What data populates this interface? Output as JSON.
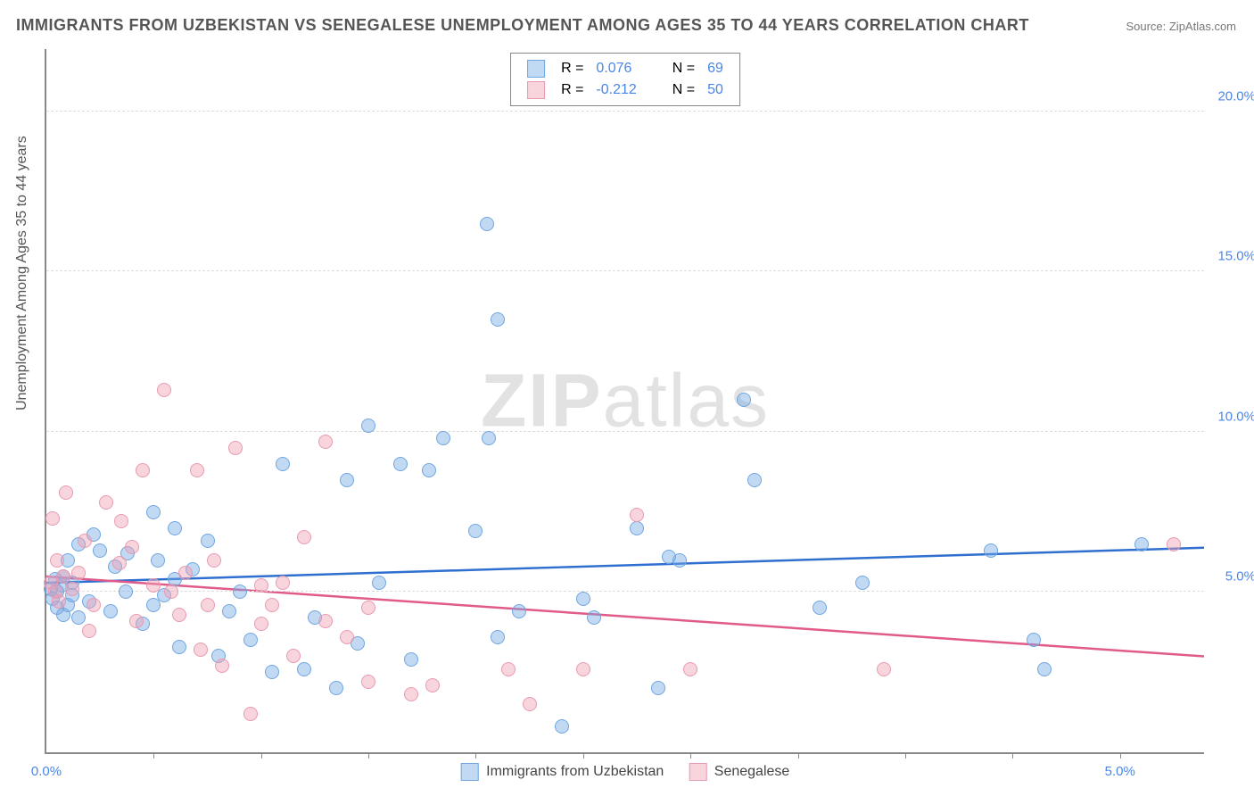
{
  "title": "IMMIGRANTS FROM UZBEKISTAN VS SENEGALESE UNEMPLOYMENT AMONG AGES 35 TO 44 YEARS CORRELATION CHART",
  "source": "Source: ZipAtlas.com",
  "ylabel": "Unemployment Among Ages 35 to 44 years",
  "watermark_a": "ZIP",
  "watermark_b": "atlas",
  "chart": {
    "type": "scatter",
    "x_min": 0.0,
    "x_max": 5.4,
    "y_min": 0.0,
    "y_max": 22.0,
    "grid_color": "#dddddd",
    "background": "#ffffff",
    "axis_color": "#888888",
    "ytick_color": "#4a86e8",
    "yticks": [
      5.0,
      10.0,
      15.0,
      20.0
    ],
    "ytick_labels": [
      "5.0%",
      "10.0%",
      "15.0%",
      "20.0%"
    ],
    "xtick_marks": [
      0.5,
      1.0,
      1.5,
      2.0,
      2.5,
      3.0,
      3.5,
      4.0,
      4.5,
      5.0
    ],
    "xtick_labels": [
      {
        "x": 0.0,
        "text": "0.0%",
        "color": "#4a86e8"
      },
      {
        "x": 5.0,
        "text": "5.0%",
        "color": "#4a86e8"
      }
    ],
    "series": [
      {
        "name": "Immigrants from Uzbekistan",
        "fill": "rgba(120,170,230,0.45)",
        "stroke": "#6fa6e0",
        "trend_color": "#2f6fd0",
        "R": "0.076",
        "N": "69",
        "trend": {
          "y_at_xmin": 5.3,
          "y_at_xmax": 6.4
        },
        "points": [
          [
            0.02,
            5.1
          ],
          [
            0.03,
            4.8
          ],
          [
            0.04,
            5.4
          ],
          [
            0.05,
            4.5
          ],
          [
            0.05,
            5.0
          ],
          [
            0.07,
            5.2
          ],
          [
            0.08,
            4.3
          ],
          [
            0.08,
            5.5
          ],
          [
            0.1,
            4.6
          ],
          [
            0.1,
            6.0
          ],
          [
            0.12,
            4.9
          ],
          [
            0.12,
            5.3
          ],
          [
            0.15,
            4.2
          ],
          [
            0.15,
            6.5
          ],
          [
            0.2,
            4.7
          ],
          [
            0.25,
            6.3
          ],
          [
            0.3,
            4.4
          ],
          [
            0.32,
            5.8
          ],
          [
            0.37,
            5.0
          ],
          [
            0.45,
            4.0
          ],
          [
            0.5,
            7.5
          ],
          [
            0.5,
            4.6
          ],
          [
            0.52,
            6.0
          ],
          [
            0.55,
            4.9
          ],
          [
            0.6,
            5.4
          ],
          [
            0.6,
            7.0
          ],
          [
            0.62,
            3.3
          ],
          [
            0.68,
            5.7
          ],
          [
            0.75,
            6.6
          ],
          [
            0.8,
            3.0
          ],
          [
            0.85,
            4.4
          ],
          [
            0.9,
            5.0
          ],
          [
            0.95,
            3.5
          ],
          [
            1.05,
            2.5
          ],
          [
            1.1,
            9.0
          ],
          [
            1.2,
            2.6
          ],
          [
            1.25,
            4.2
          ],
          [
            1.35,
            2.0
          ],
          [
            1.4,
            8.5
          ],
          [
            1.45,
            3.4
          ],
          [
            1.5,
            10.2
          ],
          [
            1.55,
            5.3
          ],
          [
            1.65,
            9.0
          ],
          [
            1.7,
            2.9
          ],
          [
            1.78,
            8.8
          ],
          [
            1.85,
            9.8
          ],
          [
            2.0,
            6.9
          ],
          [
            2.05,
            16.5
          ],
          [
            2.06,
            9.8
          ],
          [
            2.1,
            3.6
          ],
          [
            2.1,
            13.5
          ],
          [
            2.2,
            4.4
          ],
          [
            2.4,
            0.8
          ],
          [
            2.5,
            4.8
          ],
          [
            2.55,
            4.2
          ],
          [
            2.75,
            7.0
          ],
          [
            2.85,
            2.0
          ],
          [
            2.9,
            6.1
          ],
          [
            2.95,
            6.0
          ],
          [
            3.25,
            11.0
          ],
          [
            3.3,
            8.5
          ],
          [
            3.6,
            4.5
          ],
          [
            3.8,
            5.3
          ],
          [
            4.4,
            6.3
          ],
          [
            4.6,
            3.5
          ],
          [
            4.65,
            2.6
          ],
          [
            5.1,
            6.5
          ],
          [
            0.22,
            6.8
          ],
          [
            0.38,
            6.2
          ]
        ]
      },
      {
        "name": "Senegalese",
        "fill": "rgba(240,160,180,0.45)",
        "stroke": "#e89ab0",
        "trend_color": "#e05a8a",
        "R": "-0.212",
        "N": "50",
        "trend": {
          "y_at_xmin": 5.5,
          "y_at_xmax": 3.0
        },
        "points": [
          [
            0.02,
            5.3
          ],
          [
            0.03,
            7.3
          ],
          [
            0.04,
            5.0
          ],
          [
            0.05,
            6.0
          ],
          [
            0.06,
            4.7
          ],
          [
            0.08,
            5.5
          ],
          [
            0.09,
            8.1
          ],
          [
            0.12,
            5.1
          ],
          [
            0.15,
            5.6
          ],
          [
            0.2,
            3.8
          ],
          [
            0.22,
            4.6
          ],
          [
            0.28,
            7.8
          ],
          [
            0.35,
            7.2
          ],
          [
            0.4,
            6.4
          ],
          [
            0.42,
            4.1
          ],
          [
            0.45,
            8.8
          ],
          [
            0.55,
            11.3
          ],
          [
            0.58,
            5.0
          ],
          [
            0.62,
            4.3
          ],
          [
            0.65,
            5.6
          ],
          [
            0.7,
            8.8
          ],
          [
            0.72,
            3.2
          ],
          [
            0.75,
            4.6
          ],
          [
            0.78,
            6.0
          ],
          [
            0.82,
            2.7
          ],
          [
            0.88,
            9.5
          ],
          [
            0.95,
            1.2
          ],
          [
            1.0,
            5.2
          ],
          [
            1.0,
            4.0
          ],
          [
            1.05,
            4.6
          ],
          [
            1.1,
            5.3
          ],
          [
            1.15,
            3.0
          ],
          [
            1.2,
            6.7
          ],
          [
            1.3,
            9.7
          ],
          [
            1.3,
            4.1
          ],
          [
            1.4,
            3.6
          ],
          [
            1.5,
            4.5
          ],
          [
            1.5,
            2.2
          ],
          [
            1.7,
            1.8
          ],
          [
            1.8,
            2.1
          ],
          [
            2.15,
            2.6
          ],
          [
            2.25,
            1.5
          ],
          [
            2.5,
            2.6
          ],
          [
            2.75,
            7.4
          ],
          [
            3.0,
            2.6
          ],
          [
            3.9,
            2.6
          ],
          [
            5.25,
            6.5
          ],
          [
            0.18,
            6.6
          ],
          [
            0.34,
            5.9
          ],
          [
            0.5,
            5.2
          ]
        ]
      }
    ]
  },
  "legend_stats_label_R": "R =",
  "legend_stats_label_N": "N =",
  "legend_value_color": "#4a86e8"
}
